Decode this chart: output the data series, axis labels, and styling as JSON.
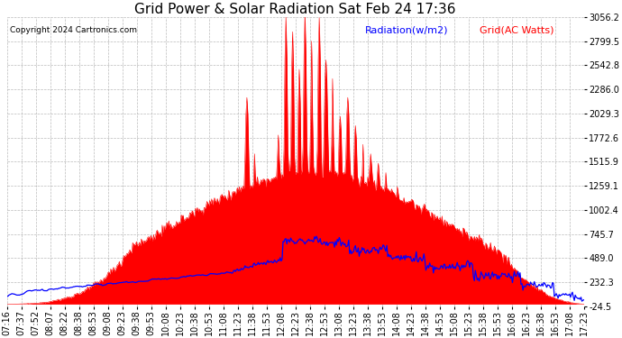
{
  "title": "Grid Power & Solar Radiation Sat Feb 24 17:36",
  "copyright": "Copyright 2024 Cartronics.com",
  "legend_radiation": "Radiation(w/m2)",
  "legend_grid": "Grid(AC Watts)",
  "ylim_min": -24.5,
  "ylim_max": 3056.2,
  "yticks": [
    3056.2,
    2799.5,
    2542.8,
    2286.0,
    2029.3,
    1772.6,
    1515.9,
    1259.1,
    1002.4,
    745.7,
    489.0,
    232.3,
    -24.5
  ],
  "background_color": "#ffffff",
  "grid_color": "#aaaaaa",
  "radiation_color": "#ff0000",
  "grid_power_color": "#0000ff",
  "title_fontsize": 11,
  "tick_label_fontsize": 7,
  "x_labels": [
    "07:16",
    "07:37",
    "07:52",
    "08:07",
    "08:22",
    "08:38",
    "08:53",
    "09:08",
    "09:23",
    "09:38",
    "09:53",
    "10:08",
    "10:23",
    "10:38",
    "10:53",
    "11:08",
    "11:23",
    "11:38",
    "11:53",
    "12:08",
    "12:23",
    "12:38",
    "12:53",
    "13:08",
    "13:23",
    "13:38",
    "13:53",
    "14:08",
    "14:23",
    "14:38",
    "14:53",
    "15:08",
    "15:23",
    "15:38",
    "15:53",
    "16:08",
    "16:23",
    "16:38",
    "16:53",
    "17:08",
    "17:23"
  ]
}
